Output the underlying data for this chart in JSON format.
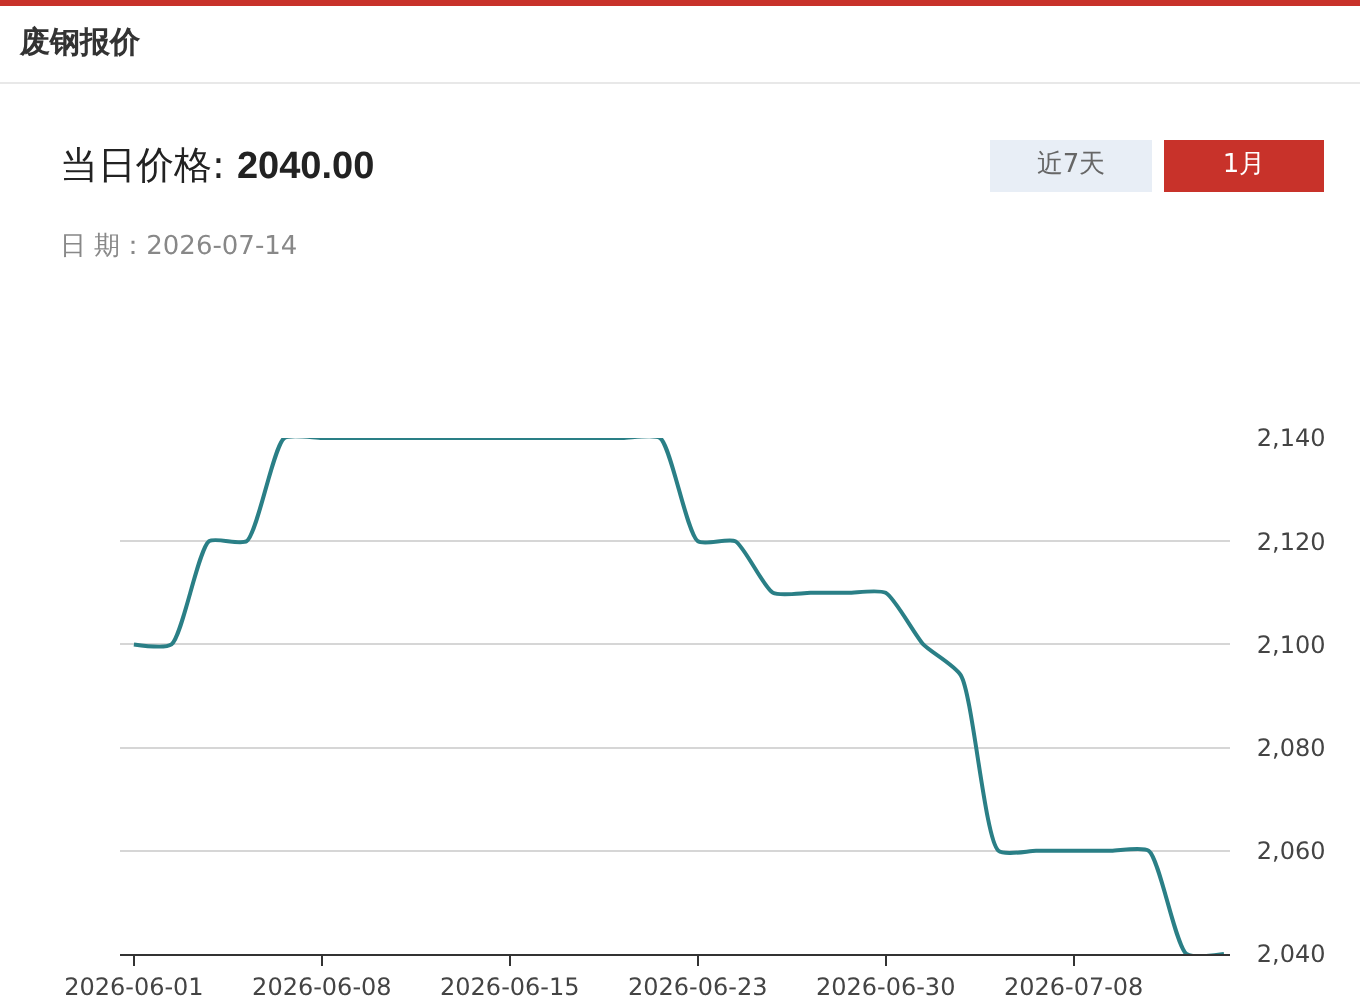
{
  "chart_data": {
    "type": "line",
    "title": "废钢报价",
    "subtitle": "当日价格: 2040.00",
    "annotations": [
      "日 期：2026-07-14",
      "近7天",
      "1月"
    ],
    "categories": [
      "2026-06-01",
      null,
      null,
      null,
      null,
      "2026-06-08",
      null,
      null,
      null,
      null,
      "2026-06-15",
      null,
      null,
      null,
      null,
      "2026-06-23",
      null,
      null,
      null,
      null,
      "2026-06-30",
      null,
      null,
      null,
      null,
      "2026-07-08",
      null,
      null,
      null,
      null
    ],
    "series": [
      {
        "color": "#2a7f86",
        "values": [
          2100,
          2100,
          2120,
          2120,
          2140,
          2140,
          2140,
          2140,
          2140,
          2140,
          2140,
          2140,
          2140,
          2140,
          2140,
          2120,
          2120,
          2110,
          2110,
          2110,
          2110,
          2100,
          2094,
          2060,
          2060,
          2060,
          2060,
          2060,
          2040,
          2040
        ]
      }
    ],
    "ylim": [
      2040,
      2140
    ],
    "yticks": [
      {
        "value": 2040,
        "label": "2,040"
      },
      {
        "value": 2060,
        "label": "2,060"
      },
      {
        "value": 2080,
        "label": "2,080"
      },
      {
        "value": 2100,
        "label": "2,100"
      },
      {
        "value": 2120,
        "label": "2,120"
      },
      {
        "value": 2140,
        "label": "2,140"
      }
    ],
    "grid": "y",
    "marker": "none",
    "line_style": "solid"
  }
}
